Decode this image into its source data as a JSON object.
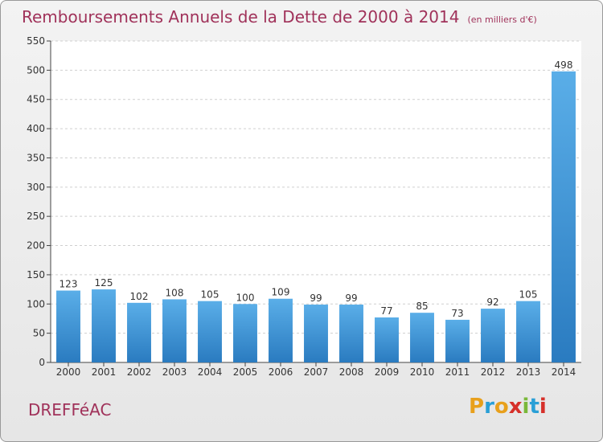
{
  "header": {
    "title": "Remboursements Annuels de la Dette de 2000 à 2014",
    "unit": "(en milliers d'€)"
  },
  "commune": "DREFFéAC",
  "logo": {
    "text": "Proxiti",
    "colors": [
      "#e8a01c",
      "#2a9fd6",
      "#e8a01c",
      "#d6302a",
      "#7ab83a",
      "#2a9fd6",
      "#d6302a"
    ]
  },
  "chart_data": {
    "type": "bar",
    "categories": [
      "2000",
      "2001",
      "2002",
      "2003",
      "2004",
      "2005",
      "2006",
      "2007",
      "2008",
      "2009",
      "2010",
      "2011",
      "2012",
      "2013",
      "2014"
    ],
    "values": [
      123,
      125,
      102,
      108,
      105,
      100,
      109,
      99,
      99,
      77,
      85,
      73,
      92,
      105,
      498
    ],
    "ylim": [
      0,
      550
    ],
    "yticks": [
      0,
      50,
      100,
      150,
      200,
      250,
      300,
      350,
      400,
      450,
      500,
      550
    ],
    "grid": true,
    "bar_color": "#3a8fd6"
  }
}
